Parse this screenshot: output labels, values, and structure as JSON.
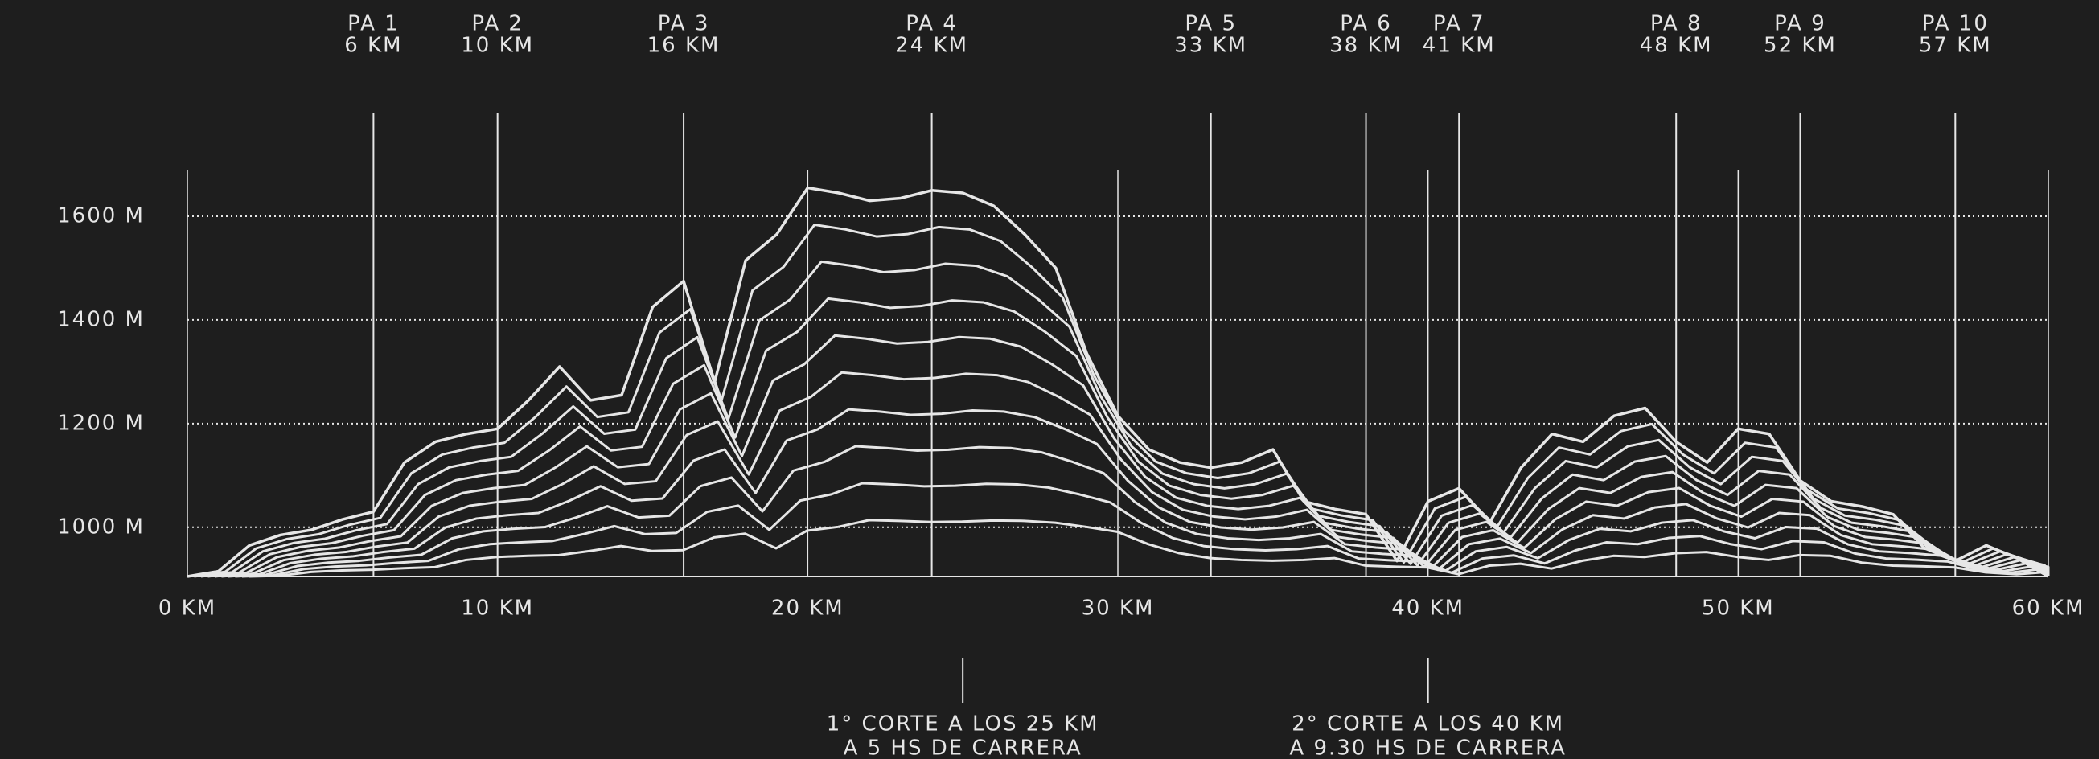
{
  "chart_data": {
    "type": "line",
    "x": [
      0,
      1,
      2,
      3,
      4,
      5,
      6,
      7,
      8,
      9,
      10,
      11,
      12,
      13,
      14,
      15,
      16,
      17,
      18,
      19,
      20,
      21,
      22,
      23,
      24,
      25,
      26,
      27,
      28,
      29,
      30,
      31,
      32,
      33,
      34,
      35,
      36,
      37,
      38,
      39,
      40,
      41,
      42,
      43,
      44,
      45,
      46,
      47,
      48,
      49,
      50,
      51,
      52,
      53,
      54,
      55,
      56,
      57,
      58,
      59,
      60
    ],
    "series": [
      {
        "color": "#e6e6e6",
        "values": [
          905,
          915,
          965,
          985,
          995,
          1015,
          1030,
          1125,
          1165,
          1180,
          1190,
          1245,
          1310,
          1245,
          1255,
          1425,
          1475,
          1280,
          1515,
          1565,
          1655,
          1645,
          1630,
          1635,
          1650,
          1645,
          1620,
          1565,
          1500,
          1335,
          1215,
          1150,
          1125,
          1115,
          1125,
          1150,
          1050,
          1035,
          1025,
          935,
          1050,
          1075,
          1010,
          1115,
          1180,
          1165,
          1215,
          1230,
          1165,
          1125,
          1190,
          1180,
          1090,
          1050,
          1040,
          1025,
          960,
          935,
          965,
          940,
          905
        ]
      }
    ],
    "xlim": [
      0,
      60
    ],
    "xticks": [
      {
        "value": 0,
        "label": "0 KM"
      },
      {
        "value": 10,
        "label": "10 KM"
      },
      {
        "value": 20,
        "label": "20 KM"
      },
      {
        "value": 30,
        "label": "30 KM"
      },
      {
        "value": 40,
        "label": "40 KM"
      },
      {
        "value": 50,
        "label": "50 KM"
      },
      {
        "value": 60,
        "label": "60 KM"
      }
    ],
    "ylim": [
      905,
      1690
    ],
    "yticks": [
      {
        "value": 1000,
        "label": "1000 M"
      },
      {
        "value": 1200,
        "label": "1200 M"
      },
      {
        "value": 1400,
        "label": "1400 M"
      },
      {
        "value": 1600,
        "label": "1600 M"
      }
    ],
    "grid": true,
    "aid_stations": [
      {
        "name": "PA 1",
        "distance": {
          "value": 6,
          "label": "6 KM"
        }
      },
      {
        "name": "PA 2",
        "distance": {
          "value": 10,
          "label": "10 KM"
        }
      },
      {
        "name": "PA 3",
        "distance": {
          "value": 16,
          "label": "16 KM"
        }
      },
      {
        "name": "PA 4",
        "distance": {
          "value": 24,
          "label": "24 KM"
        }
      },
      {
        "name": "PA 5",
        "distance": {
          "value": 33,
          "label": "33 KM"
        }
      },
      {
        "name": "PA 6",
        "distance": {
          "value": 38,
          "label": "38 KM"
        }
      },
      {
        "name": "PA 7",
        "distance": {
          "value": 41,
          "label": "41 KM"
        }
      },
      {
        "name": "PA 8",
        "distance": {
          "value": 48,
          "label": "48 KM"
        }
      },
      {
        "name": "PA 9",
        "distance": {
          "value": 52,
          "label": "52 KM"
        }
      },
      {
        "name": "PA 10",
        "distance": {
          "value": 57,
          "label": "57 KM"
        }
      }
    ],
    "cutoffs": [
      {
        "km": 25,
        "lines": [
          "1° CORTE A LOS 25 KM",
          "A 5 HS DE CARRERA"
        ]
      },
      {
        "km": 40,
        "lines": [
          "2° CORTE A LOS 40 KM",
          "A 9.30 HS DE CARRERA"
        ]
      }
    ]
  }
}
